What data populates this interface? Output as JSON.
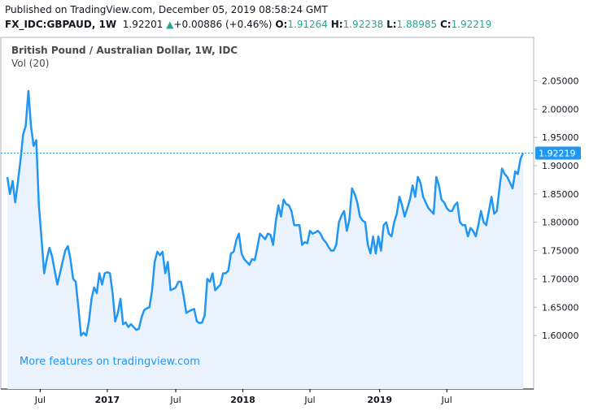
{
  "header": {
    "published": "Published on TradingView.com, December 05, 2019 08:58:24 GMT",
    "symbol": "FX_IDC:GBPAUD, 1W",
    "last": "1.92201",
    "change": "+0.00886 (+0.46%)",
    "o_label": "O:",
    "o_val": "1.91264",
    "h_label": "H:",
    "h_val": "1.92238",
    "l_label": "L:",
    "l_val": "1.88985",
    "c_label": "C:",
    "c_val": "1.92219"
  },
  "footer_link": "More features on tradingview.com",
  "colors": {
    "line": "#2196f3",
    "fill": "#eaf3fd",
    "axis": "#000000",
    "last_price": "#2196f3",
    "up": "#26a69a"
  },
  "chart_data": {
    "type": "area",
    "title": "British Pound / Australian Dollar, 1W, IDC",
    "indicator": "Vol (20)",
    "last_price_label": "1.92219",
    "last_price": 1.92219,
    "ylim": [
      1.54,
      2.085
    ],
    "y_ticks": [
      "2.05000",
      "2.00000",
      "1.95000",
      "1.90000",
      "1.85000",
      "1.80000",
      "1.75000",
      "1.70000",
      "1.65000",
      "1.60000"
    ],
    "x_ticks": [
      {
        "label": "Jul",
        "bold": false,
        "week": 12.5
      },
      {
        "label": "2017",
        "bold": true,
        "week": 38
      },
      {
        "label": "Jul",
        "bold": false,
        "week": 64
      },
      {
        "label": "2018",
        "bold": true,
        "week": 89.5
      },
      {
        "label": "Jul",
        "bold": false,
        "week": 115
      },
      {
        "label": "2019",
        "bold": true,
        "week": 141.5
      },
      {
        "label": "Jul",
        "bold": false,
        "week": 167
      }
    ],
    "values": [
      1.88,
      1.85,
      1.873,
      1.835,
      1.87,
      1.91,
      1.955,
      1.97,
      2.032,
      1.97,
      1.935,
      1.945,
      1.83,
      1.77,
      1.71,
      1.735,
      1.755,
      1.74,
      1.715,
      1.69,
      1.71,
      1.73,
      1.75,
      1.758,
      1.735,
      1.7,
      1.695,
      1.65,
      1.6,
      1.605,
      1.6,
      1.625,
      1.665,
      1.685,
      1.675,
      1.71,
      1.69,
      1.71,
      1.712,
      1.71,
      1.675,
      1.625,
      1.64,
      1.665,
      1.62,
      1.623,
      1.615,
      1.62,
      1.615,
      1.61,
      1.612,
      1.632,
      1.645,
      1.648,
      1.65,
      1.68,
      1.73,
      1.748,
      1.742,
      1.748,
      1.71,
      1.73,
      1.68,
      1.682,
      1.685,
      1.695,
      1.695,
      1.67,
      1.64,
      1.643,
      1.645,
      1.647,
      1.625,
      1.622,
      1.623,
      1.636,
      1.7,
      1.695,
      1.71,
      1.68,
      1.685,
      1.69,
      1.71,
      1.71,
      1.715,
      1.745,
      1.748,
      1.768,
      1.78,
      1.745,
      1.735,
      1.73,
      1.725,
      1.735,
      1.733,
      1.755,
      1.78,
      1.775,
      1.77,
      1.78,
      1.778,
      1.76,
      1.8,
      1.83,
      1.81,
      1.84,
      1.832,
      1.83,
      1.82,
      1.795,
      1.795,
      1.795,
      1.76,
      1.765,
      1.763,
      1.785,
      1.78,
      1.782,
      1.785,
      1.78,
      1.77,
      1.765,
      1.757,
      1.75,
      1.75,
      1.76,
      1.8,
      1.812,
      1.82,
      1.785,
      1.805,
      1.86,
      1.85,
      1.835,
      1.81,
      1.803,
      1.8,
      1.76,
      1.745,
      1.775,
      1.745,
      1.775,
      1.75,
      1.795,
      1.8,
      1.78,
      1.775,
      1.8,
      1.815,
      1.845,
      1.83,
      1.81,
      1.825,
      1.84,
      1.865,
      1.845,
      1.88,
      1.87,
      1.845,
      1.835,
      1.825,
      1.82,
      1.815,
      1.88,
      1.865,
      1.84,
      1.835,
      1.825,
      1.82,
      1.82,
      1.83,
      1.835,
      1.8,
      1.795,
      1.795,
      1.775,
      1.79,
      1.785,
      1.775,
      1.795,
      1.82,
      1.8,
      1.795,
      1.82,
      1.845,
      1.815,
      1.82,
      1.86,
      1.895,
      1.885,
      1.88,
      1.87,
      1.86,
      1.89,
      1.885,
      1.912,
      1.92219
    ]
  }
}
